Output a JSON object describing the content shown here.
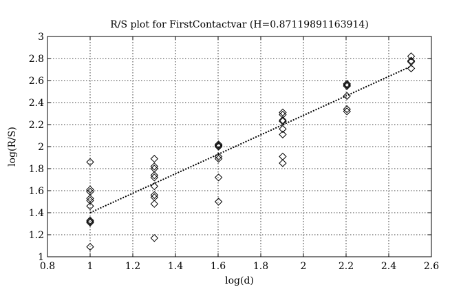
{
  "chart_data": {
    "type": "scatter",
    "title": "R/S plot for FirstContactvar (H=0.87119891163914)",
    "xlabel": "log(d)",
    "ylabel": "log(R/S)",
    "xlim": [
      0.8,
      2.6
    ],
    "ylim": [
      1,
      3
    ],
    "xticks": [
      "0.8",
      "1",
      "1.2",
      "1.4",
      "1.6",
      "1.8",
      "2",
      "2.2",
      "2.4",
      "2.6"
    ],
    "yticks": [
      "1",
      "1.2",
      "1.4",
      "1.6",
      "1.8",
      "2",
      "2.2",
      "2.4",
      "2.6",
      "2.8",
      "3"
    ],
    "grid": true,
    "marker": "diamond",
    "points": [
      [
        1.0,
        1.86
      ],
      [
        1.0,
        1.61
      ],
      [
        1.0,
        1.59
      ],
      [
        1.0,
        1.53
      ],
      [
        1.0,
        1.51
      ],
      [
        1.0,
        1.46
      ],
      [
        1.0,
        1.33
      ],
      [
        1.0,
        1.32
      ],
      [
        1.0,
        1.31
      ],
      [
        1.0,
        1.09
      ],
      [
        1.301,
        1.89
      ],
      [
        1.301,
        1.82
      ],
      [
        1.301,
        1.8
      ],
      [
        1.301,
        1.74
      ],
      [
        1.301,
        1.72
      ],
      [
        1.301,
        1.64
      ],
      [
        1.301,
        1.56
      ],
      [
        1.301,
        1.54
      ],
      [
        1.301,
        1.48
      ],
      [
        1.301,
        1.17
      ],
      [
        1.602,
        2.02
      ],
      [
        1.602,
        2.01
      ],
      [
        1.602,
        2.0
      ],
      [
        1.602,
        1.91
      ],
      [
        1.602,
        1.89
      ],
      [
        1.602,
        1.72
      ],
      [
        1.602,
        1.5
      ],
      [
        1.903,
        2.31
      ],
      [
        1.903,
        2.29
      ],
      [
        1.903,
        2.24
      ],
      [
        1.903,
        2.23
      ],
      [
        1.903,
        2.16
      ],
      [
        1.903,
        2.11
      ],
      [
        1.903,
        1.91
      ],
      [
        1.903,
        1.85
      ],
      [
        2.204,
        2.57
      ],
      [
        2.204,
        2.56
      ],
      [
        2.204,
        2.55
      ],
      [
        2.204,
        2.46
      ],
      [
        2.204,
        2.34
      ],
      [
        2.204,
        2.32
      ],
      [
        2.505,
        2.82
      ],
      [
        2.505,
        2.78
      ],
      [
        2.505,
        2.77
      ],
      [
        2.505,
        2.71
      ]
    ],
    "fit_line": {
      "style": "dotted",
      "x": [
        1.0,
        2.505
      ],
      "y": [
        1.4,
        2.73
      ]
    }
  }
}
